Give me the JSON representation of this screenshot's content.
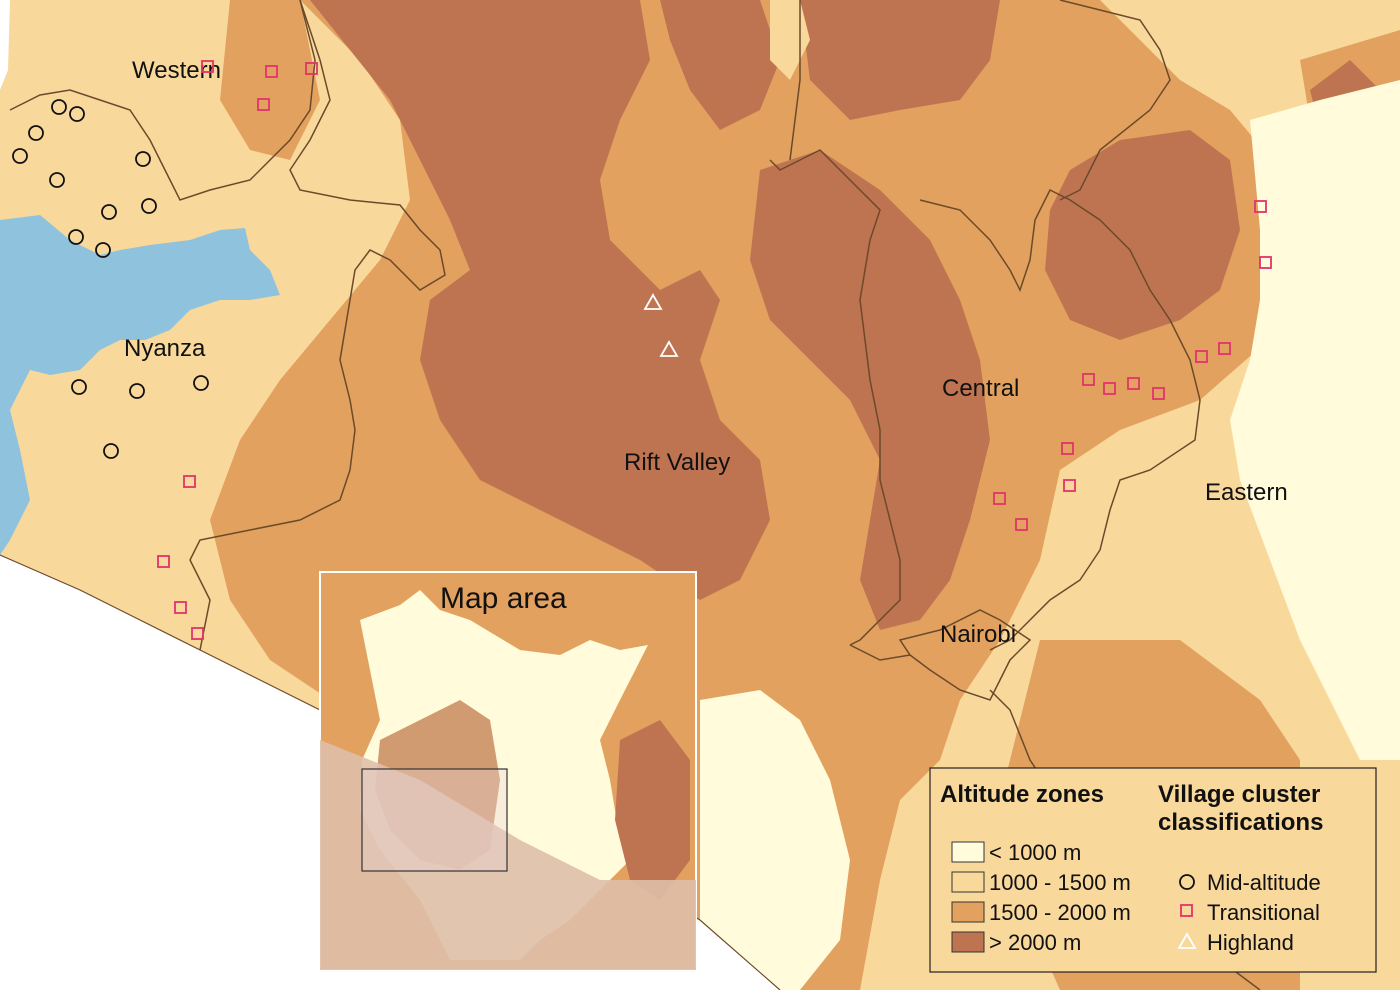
{
  "colors": {
    "lt1000": "#fffbdb",
    "z1000_1500": "#f9d89c",
    "z1500_2000": "#e2a15e",
    "gt2000": "#bf7451",
    "water": "#8fc3dd",
    "border": "#6b4a2a",
    "transitional": "#e2336b",
    "midaltitude": "#111111",
    "highland": "#ffffff"
  },
  "regions": {
    "western": "Western",
    "nyanza": "Nyanza",
    "rift_valley": "Rift Valley",
    "central": "Central",
    "eastern": "Eastern",
    "nairobi": "Nairobi"
  },
  "inset": {
    "title": "Map area"
  },
  "legend": {
    "altitude_title": "Altitude zones",
    "village_title_line1": "Village cluster",
    "village_title_line2": "classifications",
    "altitude_zones": [
      {
        "label": "< 1000 m",
        "color": "#fffbdb"
      },
      {
        "label": "1000 - 1500 m",
        "color": "#f9d89c"
      },
      {
        "label": "1500 - 2000 m",
        "color": "#e2a15e"
      },
      {
        "label": "> 2000 m",
        "color": "#bf7451"
      }
    ],
    "village_classes": [
      {
        "label": "Mid-altitude",
        "marker": "circle"
      },
      {
        "label": "Transitional",
        "marker": "square"
      },
      {
        "label": "Highland",
        "marker": "triangle"
      }
    ]
  }
}
